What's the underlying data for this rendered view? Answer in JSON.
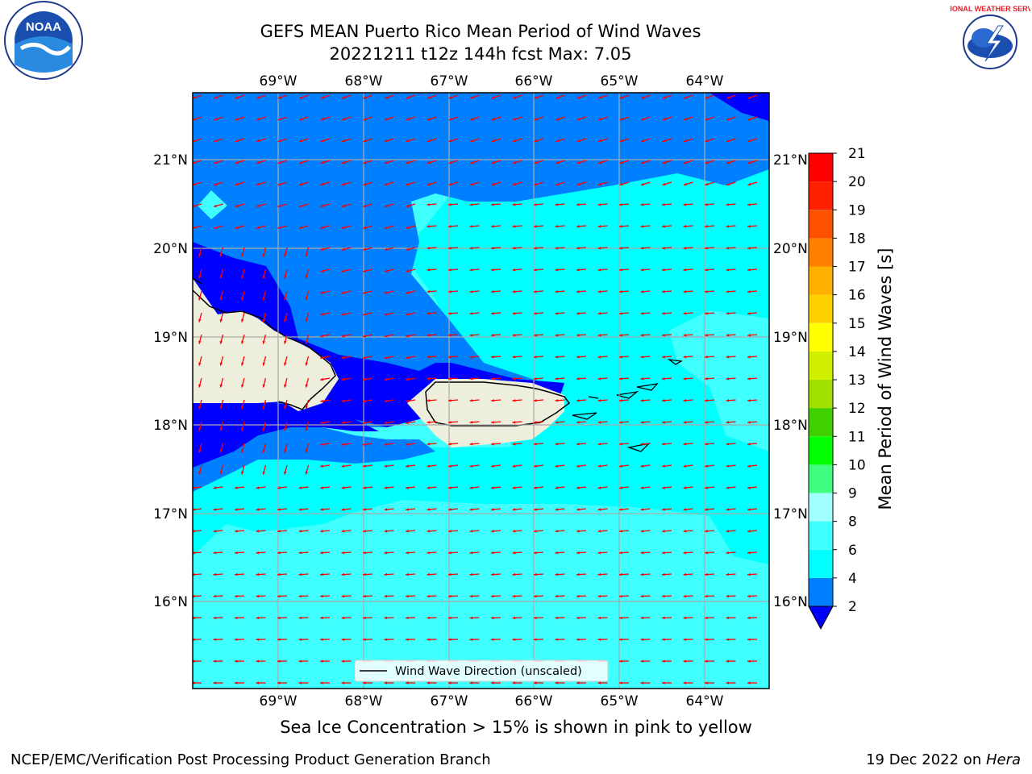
{
  "header": {
    "title_line1": "GEFS MEAN Puerto Rico Mean Period of Wind Waves",
    "title_line2": "20221211 t12z 144h fcst   Max: 7.05"
  },
  "logos": {
    "left": "NOAA",
    "right": "NATIONAL WEATHER SERVICE"
  },
  "map": {
    "lon_ticks": [
      "69°W",
      "68°W",
      "67°W",
      "66°W",
      "65°W",
      "64°W"
    ],
    "lat_ticks": [
      "21°N",
      "20°N",
      "19°N",
      "18°N",
      "17°N",
      "16°N"
    ],
    "legend_label": "Wind Wave Direction (unscaled)",
    "land_color": "#eeeedd",
    "arrow_color": "#ff0000"
  },
  "colorbar": {
    "label": "Mean Period of Wind Waves [s]",
    "tick_labels": [
      "2",
      "4",
      "6",
      "8",
      "9",
      "10",
      "11",
      "12",
      "13",
      "14",
      "15",
      "16",
      "17",
      "18",
      "19",
      "20",
      "21"
    ],
    "colors": [
      "#0000ff",
      "#0080ff",
      "#00ffff",
      "#40ffff",
      "#a0ffff",
      "#40ff80",
      "#00ff00",
      "#40d000",
      "#a0e000",
      "#d0f000",
      "#ffff00",
      "#ffd000",
      "#ffb000",
      "#ff8000",
      "#ff5000",
      "#ff2000",
      "#ff0000"
    ],
    "extend_color": "#0000ff"
  },
  "caption": "Sea Ice Concentration > 15% is shown in pink to yellow",
  "footer": {
    "left": "NCEP/EMC/Verification Post Processing Product Generation Branch",
    "right_date": "19 Dec 2022 on ",
    "right_host": "Hera"
  }
}
